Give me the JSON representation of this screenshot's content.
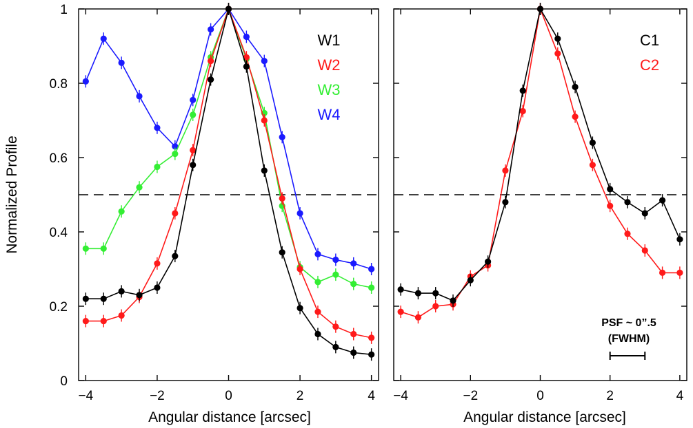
{
  "chart_data": [
    {
      "type": "line",
      "panel": "left",
      "title": "",
      "xlabel": "Angular distance [arcsec]",
      "ylabel": "Normalized Profile",
      "xlim": [
        -4.2,
        4.2
      ],
      "ylim": [
        0,
        1
      ],
      "xticks": [
        -4,
        -2,
        0,
        2,
        4
      ],
      "xtick_labels": [
        "−4",
        "−2",
        "0",
        "2",
        "4"
      ],
      "yticks": [
        0,
        0.2,
        0.4,
        0.6,
        0.8,
        1
      ],
      "ytick_labels": [
        "0",
        "0.2",
        "0.4",
        "0.6",
        "0.8",
        "1"
      ],
      "reference_line": {
        "y": 0.5,
        "style": "dashed"
      },
      "legend_position": "top-right",
      "x": [
        -4,
        -3.5,
        -3,
        -2.5,
        -2,
        -1.5,
        -1,
        -0.5,
        0,
        0.5,
        1,
        1.5,
        2,
        2.5,
        3,
        3.5,
        4
      ],
      "series": [
        {
          "name": "W1",
          "color": "#000000",
          "values": [
            0.22,
            0.22,
            0.24,
            0.23,
            0.25,
            0.335,
            0.58,
            0.81,
            1.0,
            0.845,
            0.565,
            0.345,
            0.195,
            0.125,
            0.09,
            0.075,
            0.07
          ]
        },
        {
          "name": "W2",
          "color": "#ff1a1a",
          "values": [
            0.16,
            0.16,
            0.175,
            0.225,
            0.315,
            0.45,
            0.62,
            0.86,
            1.0,
            0.87,
            0.7,
            0.49,
            0.3,
            0.185,
            0.145,
            0.125,
            0.115
          ]
        },
        {
          "name": "W3",
          "color": "#33ee33",
          "values": [
            0.355,
            0.355,
            0.455,
            0.52,
            0.575,
            0.61,
            0.715,
            0.87,
            1.0,
            0.865,
            0.72,
            0.47,
            0.305,
            0.265,
            0.285,
            0.26,
            0.25
          ]
        },
        {
          "name": "W4",
          "color": "#1a1aff",
          "values": [
            0.805,
            0.92,
            0.855,
            0.765,
            0.68,
            0.63,
            0.755,
            0.945,
            1.0,
            0.925,
            0.86,
            0.655,
            0.45,
            0.34,
            0.325,
            0.315,
            0.3
          ]
        }
      ]
    },
    {
      "type": "line",
      "panel": "right",
      "title": "",
      "xlabel": "Angular distance [arcsec]",
      "ylabel": "",
      "xlim": [
        -4.2,
        4.2
      ],
      "ylim": [
        0,
        1
      ],
      "xticks": [
        -4,
        -2,
        0,
        2,
        4
      ],
      "xtick_labels": [
        "−4",
        "−2",
        "0",
        "2",
        "4"
      ],
      "yticks": [
        0,
        0.2,
        0.4,
        0.6,
        0.8,
        1
      ],
      "ytick_labels": [],
      "reference_line": {
        "y": 0.5,
        "style": "dashed"
      },
      "legend_position": "top-right",
      "annotation": {
        "line1": "PSF ~ 0”.5",
        "line2": "(FWHM)",
        "bar_from": 2.0,
        "bar_to": 3.0
      },
      "x": [
        -4,
        -3.5,
        -3,
        -2.5,
        -2,
        -1.5,
        -1,
        -0.5,
        0,
        0.5,
        1,
        1.5,
        2,
        2.5,
        3,
        3.5,
        4
      ],
      "series": [
        {
          "name": "C1",
          "color": "#000000",
          "values": [
            0.245,
            0.235,
            0.235,
            0.215,
            0.27,
            0.32,
            0.48,
            0.78,
            1.0,
            0.92,
            0.79,
            0.64,
            0.515,
            0.48,
            0.45,
            0.485,
            0.38
          ]
        },
        {
          "name": "C2",
          "color": "#ff1a1a",
          "values": [
            0.185,
            0.17,
            0.2,
            0.205,
            0.28,
            0.31,
            0.565,
            0.725,
            1.0,
            0.88,
            0.71,
            0.58,
            0.47,
            0.395,
            0.35,
            0.29,
            0.29
          ]
        }
      ]
    }
  ]
}
